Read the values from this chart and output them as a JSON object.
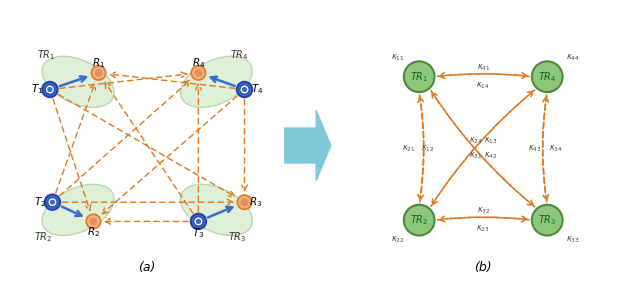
{
  "arrow_color": "#E07820",
  "blue_node_color": "#3B6CC8",
  "blue_node_edge": "#2244AA",
  "orange_node_color": "#F4B080",
  "orange_node_edge": "#D06810",
  "green_node_color": "#8DC87A",
  "green_node_edge": "#4A8A3A",
  "ellipse_color": "#DFF0D8",
  "ellipse_edge": "#B8D8B0",
  "arrow_blue": "#3B6CC8",
  "arrow_box_color": "#7EC8DA",
  "label_a": "(a)",
  "label_b": "(b)"
}
